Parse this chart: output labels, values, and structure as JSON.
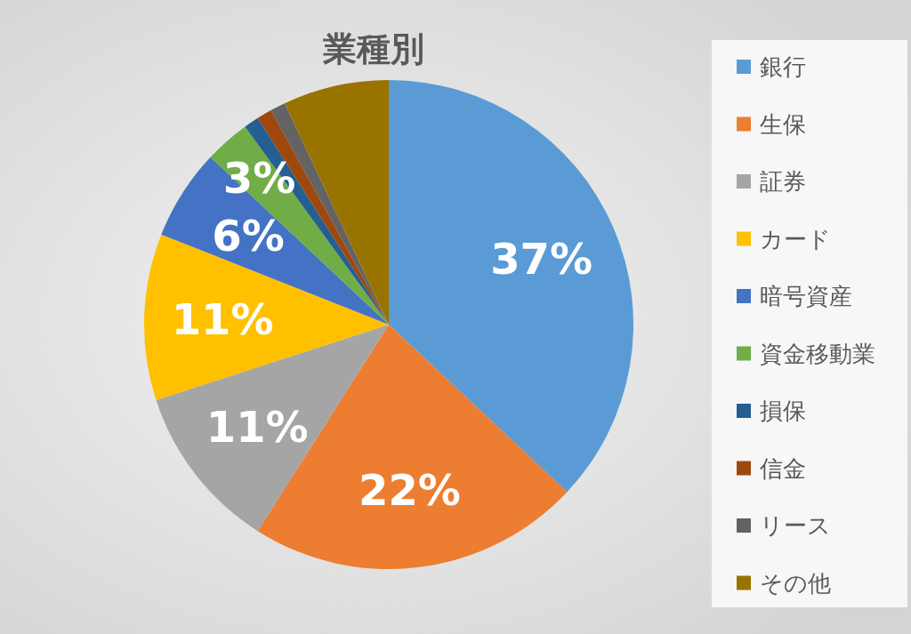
{
  "chart_data": {
    "type": "pie",
    "title": "業種別",
    "categories": [
      "銀行",
      "生保",
      "証券",
      "カード",
      "暗号資産",
      "資金移動業",
      "損保",
      "信金",
      "リース",
      "その他"
    ],
    "values": [
      37,
      22,
      11,
      11,
      6,
      3,
      1,
      1,
      1,
      7
    ],
    "colors": [
      "#5b9bd5",
      "#ed7d31",
      "#a5a5a5",
      "#ffc000",
      "#4472c4",
      "#70ad47",
      "#255e91",
      "#9e480e",
      "#636363",
      "#997300"
    ],
    "value_labels": [
      "37%",
      "22%",
      "11%",
      "11%",
      "6%",
      "3%",
      null,
      null,
      null,
      null
    ],
    "legend": "right"
  }
}
